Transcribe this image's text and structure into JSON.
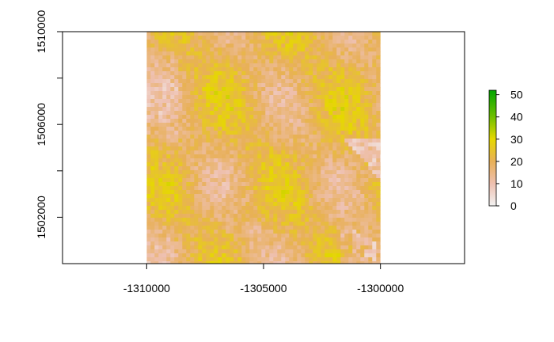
{
  "chart_data": {
    "type": "heatmap",
    "title": "",
    "xlabel": "",
    "ylabel": "",
    "xlim": [
      -1313600,
      -1296400
    ],
    "ylim": [
      1500000,
      1510000
    ],
    "raster_extent": {
      "x": [
        -1310000,
        -1300000
      ],
      "y": [
        1500000,
        1510000
      ]
    },
    "x_ticks": [
      {
        "value": -1310000,
        "label": "-1310000"
      },
      {
        "value": -1305000,
        "label": "-1305000"
      },
      {
        "value": -1300000,
        "label": "-1300000"
      }
    ],
    "y_ticks": [
      {
        "value": 1502000,
        "label": "1502000"
      },
      {
        "value": 1506000,
        "label": "1506000"
      },
      {
        "value": 1510000,
        "label": "1510000"
      }
    ],
    "y_minor_ticks": [
      1504000,
      1508000
    ],
    "color_scale": {
      "min": 0,
      "max": 52,
      "stops": [
        {
          "value": 0,
          "color": "#f2f2f2"
        },
        {
          "value": 10,
          "color": "#eec0b0"
        },
        {
          "value": 20,
          "color": "#e8b058"
        },
        {
          "value": 30,
          "color": "#e6d800"
        },
        {
          "value": 40,
          "color": "#70c000"
        },
        {
          "value": 52,
          "color": "#00a600"
        }
      ],
      "ticks": [
        {
          "value": 0,
          "label": "0"
        },
        {
          "value": 10,
          "label": "10"
        },
        {
          "value": 20,
          "label": "20"
        },
        {
          "value": 30,
          "label": "30"
        },
        {
          "value": 40,
          "label": "40"
        },
        {
          "value": 50,
          "label": "50"
        }
      ]
    },
    "value_summary": {
      "typical_range": [
        12,
        28
      ]
    },
    "legend_position": "right",
    "grid": false
  }
}
